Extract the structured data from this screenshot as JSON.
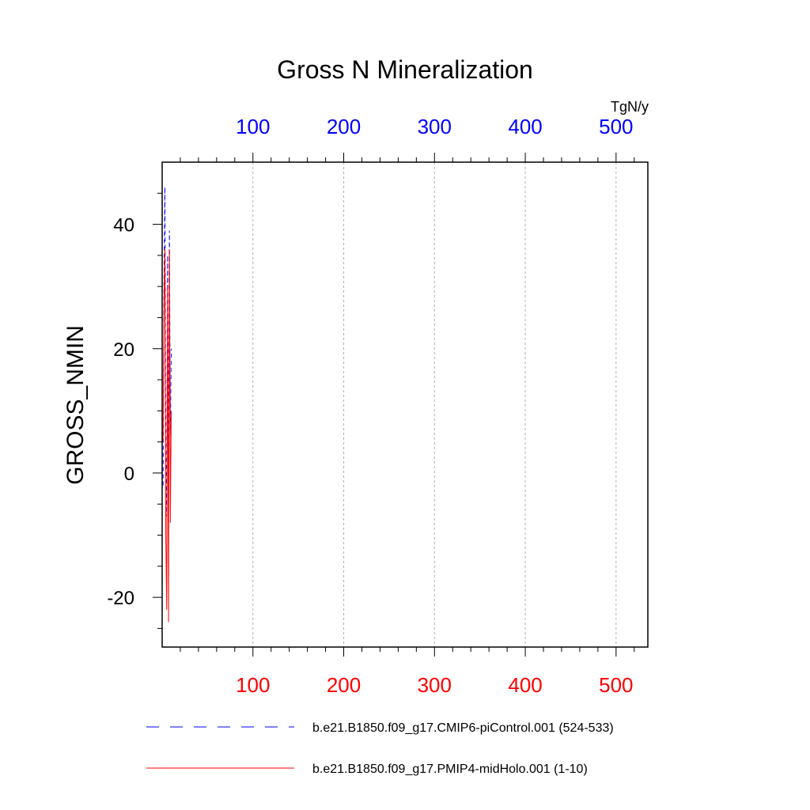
{
  "chart_data": {
    "type": "line",
    "title": "Gross N Mineralization",
    "ylabel": "GROSS_NMIN",
    "units": "TgN/y",
    "xlim": [
      0,
      535
    ],
    "ylim": [
      -28,
      50
    ],
    "ytick_labels": [
      "40",
      "20",
      "0",
      "-20"
    ],
    "yticks": [
      40,
      20,
      0,
      -20
    ],
    "xtick_labels_top": [
      "100",
      "200",
      "300",
      "400",
      "500"
    ],
    "xtick_labels_bottom": [
      "100",
      "200",
      "300",
      "400",
      "500"
    ],
    "xticks": [
      100,
      200,
      300,
      400,
      500
    ],
    "grid": "vertical dotted",
    "top_axis_color": "#0000ff",
    "bottom_axis_color": "#ff0000",
    "series": [
      {
        "name": "b.e21.B1850.f09_g17.CMIP6-piControl.001 (524-533)",
        "color": "#0000ff",
        "style": "dashed",
        "x": [
          1,
          2,
          3,
          4,
          5,
          6,
          7,
          8,
          9,
          10
        ],
        "y": [
          -2,
          30,
          46,
          5,
          -7,
          35,
          -5,
          39,
          6,
          20
        ]
      },
      {
        "name": "b.e21.B1850.f09_g17.PMIP4-midHolo.001 (1-10)",
        "color": "#ff0000",
        "style": "solid",
        "x": [
          1,
          2,
          3,
          4,
          5,
          6,
          7,
          8,
          9,
          10
        ],
        "y": [
          5,
          28,
          36,
          -10,
          -22,
          30,
          -24,
          36,
          -8,
          10
        ]
      }
    ]
  }
}
